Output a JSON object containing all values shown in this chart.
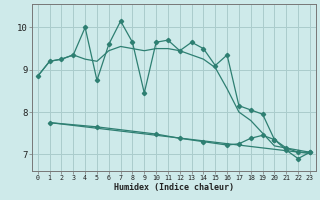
{
  "xlabel": "Humidex (Indice chaleur)",
  "bg_color": "#ceeaea",
  "grid_color": "#aacccc",
  "line_color": "#2e7f72",
  "xlim": [
    -0.5,
    23.5
  ],
  "ylim": [
    6.6,
    10.55
  ],
  "yticks": [
    7,
    8,
    9,
    10
  ],
  "xticks": [
    0,
    1,
    2,
    3,
    4,
    5,
    6,
    7,
    8,
    9,
    10,
    11,
    12,
    13,
    14,
    15,
    16,
    17,
    18,
    19,
    20,
    21,
    22,
    23
  ],
  "line1_x": [
    0,
    1,
    2,
    3,
    4,
    5,
    6,
    7,
    8,
    9,
    10,
    11,
    12,
    13,
    14,
    15,
    16,
    17,
    18,
    19,
    20,
    21,
    22,
    23
  ],
  "line1_y": [
    8.85,
    9.2,
    9.25,
    9.35,
    10.0,
    8.75,
    9.6,
    10.15,
    9.65,
    8.45,
    9.65,
    9.7,
    9.45,
    9.65,
    9.5,
    9.1,
    9.35,
    8.15,
    8.05,
    7.95,
    7.35,
    7.1,
    6.9,
    7.05
  ],
  "line2_x": [
    0,
    1,
    2,
    3,
    4,
    5,
    6,
    7,
    8,
    9,
    10,
    11,
    12,
    13,
    14,
    15,
    16,
    17,
    18,
    19,
    20,
    21,
    22,
    23
  ],
  "line2_y": [
    8.85,
    9.2,
    9.25,
    9.35,
    9.25,
    9.2,
    9.45,
    9.55,
    9.5,
    9.45,
    9.5,
    9.5,
    9.45,
    9.35,
    9.25,
    9.05,
    8.55,
    8.0,
    7.8,
    7.5,
    7.2,
    7.15,
    7.1,
    7.05
  ],
  "line3_x": [
    1,
    5,
    10,
    12,
    14,
    16,
    17,
    18,
    19,
    20,
    21,
    22,
    23
  ],
  "line3_y": [
    7.75,
    7.65,
    7.48,
    7.38,
    7.3,
    7.22,
    7.25,
    7.38,
    7.45,
    7.35,
    7.15,
    7.05,
    7.05
  ]
}
